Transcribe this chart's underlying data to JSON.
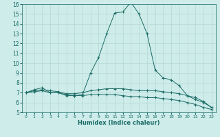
{
  "xlabel": "Humidex (Indice chaleur)",
  "bg_color": "#ceecea",
  "grid_color": "#b8dbd8",
  "line_color": "#1a6b65",
  "xlim": [
    -0.5,
    23.5
  ],
  "ylim": [
    5,
    16
  ],
  "xticks": [
    0,
    1,
    2,
    3,
    4,
    5,
    6,
    7,
    8,
    9,
    10,
    11,
    12,
    13,
    14,
    15,
    16,
    17,
    18,
    19,
    20,
    21,
    22,
    23
  ],
  "yticks": [
    5,
    6,
    7,
    8,
    9,
    10,
    11,
    12,
    13,
    14,
    15,
    16
  ],
  "series1_x": [
    0,
    1,
    2,
    3,
    4,
    5,
    6,
    7,
    8,
    9,
    10,
    11,
    12,
    13,
    14,
    15,
    16,
    17,
    18,
    19,
    20,
    21,
    22,
    23
  ],
  "series1_y": [
    7.0,
    7.3,
    7.5,
    7.0,
    7.0,
    6.7,
    6.7,
    6.8,
    9.0,
    10.6,
    13.0,
    15.1,
    15.2,
    16.2,
    15.0,
    13.0,
    9.3,
    8.5,
    8.3,
    7.7,
    6.7,
    6.3,
    6.0,
    5.5
  ],
  "series2_x": [
    0,
    1,
    2,
    3,
    4,
    5,
    6,
    7,
    8,
    9,
    10,
    11,
    12,
    13,
    14,
    15,
    16,
    17,
    18,
    19,
    20,
    21,
    22,
    23
  ],
  "series2_y": [
    7.0,
    7.2,
    7.3,
    7.2,
    7.1,
    6.9,
    6.9,
    7.0,
    7.2,
    7.3,
    7.4,
    7.4,
    7.4,
    7.3,
    7.2,
    7.2,
    7.2,
    7.1,
    7.0,
    6.9,
    6.7,
    6.5,
    6.1,
    5.5
  ],
  "series3_x": [
    0,
    1,
    2,
    3,
    4,
    5,
    6,
    7,
    8,
    9,
    10,
    11,
    12,
    13,
    14,
    15,
    16,
    17,
    18,
    19,
    20,
    21,
    22,
    23
  ],
  "series3_y": [
    7.0,
    7.1,
    7.2,
    7.0,
    7.0,
    6.8,
    6.7,
    6.7,
    6.8,
    6.8,
    6.8,
    6.8,
    6.7,
    6.6,
    6.6,
    6.5,
    6.5,
    6.4,
    6.3,
    6.2,
    6.0,
    5.8,
    5.5,
    5.3
  ]
}
